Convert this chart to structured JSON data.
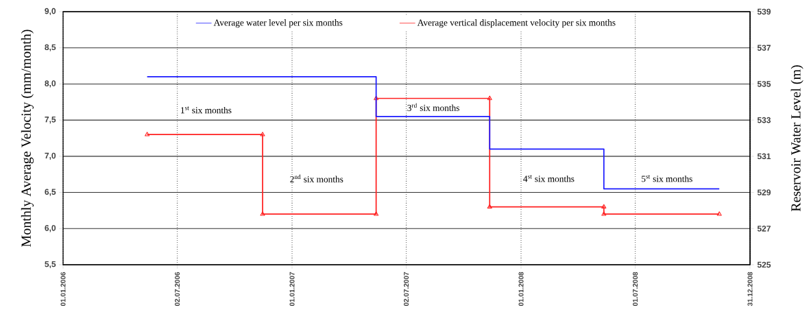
{
  "chart_data": {
    "type": "line",
    "ylabel": "Monthly Average Velocity (mm/month)",
    "y2label": "Reservoir Water Level (m)",
    "xlim": [
      "2006-01-01",
      "2008-12-31"
    ],
    "xticks": [
      {
        "value": "2006-01-01",
        "label": "01.01.2006"
      },
      {
        "value": "2006-07-02",
        "label": "02.07.2006"
      },
      {
        "value": "2007-01-01",
        "label": "01.01.2007"
      },
      {
        "value": "2007-07-02",
        "label": "02.07.2007"
      },
      {
        "value": "2008-01-01",
        "label": "01.01.2008"
      },
      {
        "value": "2008-07-01",
        "label": "01.07.2008"
      },
      {
        "value": "2008-12-31",
        "label": "31.12.2008"
      }
    ],
    "ylim": [
      5.5,
      9.0
    ],
    "yticks": [
      {
        "value": 5.5,
        "label": "5,5"
      },
      {
        "value": 6.0,
        "label": "6,0"
      },
      {
        "value": 6.5,
        "label": "6,5"
      },
      {
        "value": 7.0,
        "label": "7,0"
      },
      {
        "value": 7.5,
        "label": "7,5"
      },
      {
        "value": 8.0,
        "label": "8,0"
      },
      {
        "value": 8.5,
        "label": "8,5"
      },
      {
        "value": 9.0,
        "label": "9,0"
      }
    ],
    "y2lim": [
      525,
      539
    ],
    "y2ticks": [
      525,
      527,
      529,
      531,
      533,
      535,
      537,
      539
    ],
    "grid": true,
    "legend": "top",
    "series": [
      {
        "name": "Average water level per six months",
        "color": "#1a1aff",
        "axis": "y2",
        "marker": "none",
        "x": [
          "2006-05-15",
          "2007-05-15",
          "2007-05-15",
          "2007-11-12",
          "2007-11-12",
          "2008-05-12",
          "2008-05-12",
          "2008-11-12"
        ],
        "values": [
          535.4,
          535.4,
          533.2,
          533.2,
          531.4,
          531.4,
          529.2,
          529.2
        ]
      },
      {
        "name": "Average vertical displacement velocity per six months",
        "color": "#ff2020",
        "marker": "triangle",
        "x": [
          "2006-05-15",
          "2006-11-15",
          "2006-11-15",
          "2007-05-15",
          "2007-05-15",
          "2007-11-12",
          "2007-11-12",
          "2008-05-12",
          "2008-05-12",
          "2008-11-12"
        ],
        "values": [
          7.3,
          7.3,
          6.2,
          6.2,
          7.8,
          7.8,
          6.3,
          6.3,
          6.2,
          6.2
        ]
      }
    ],
    "annotations": [
      "1$^{st}$ six months",
      "2$^{nd}$ six months",
      "3$^{rd}$ six months",
      "4$^{st}$ six months",
      "5$^{st}$ six months"
    ]
  }
}
